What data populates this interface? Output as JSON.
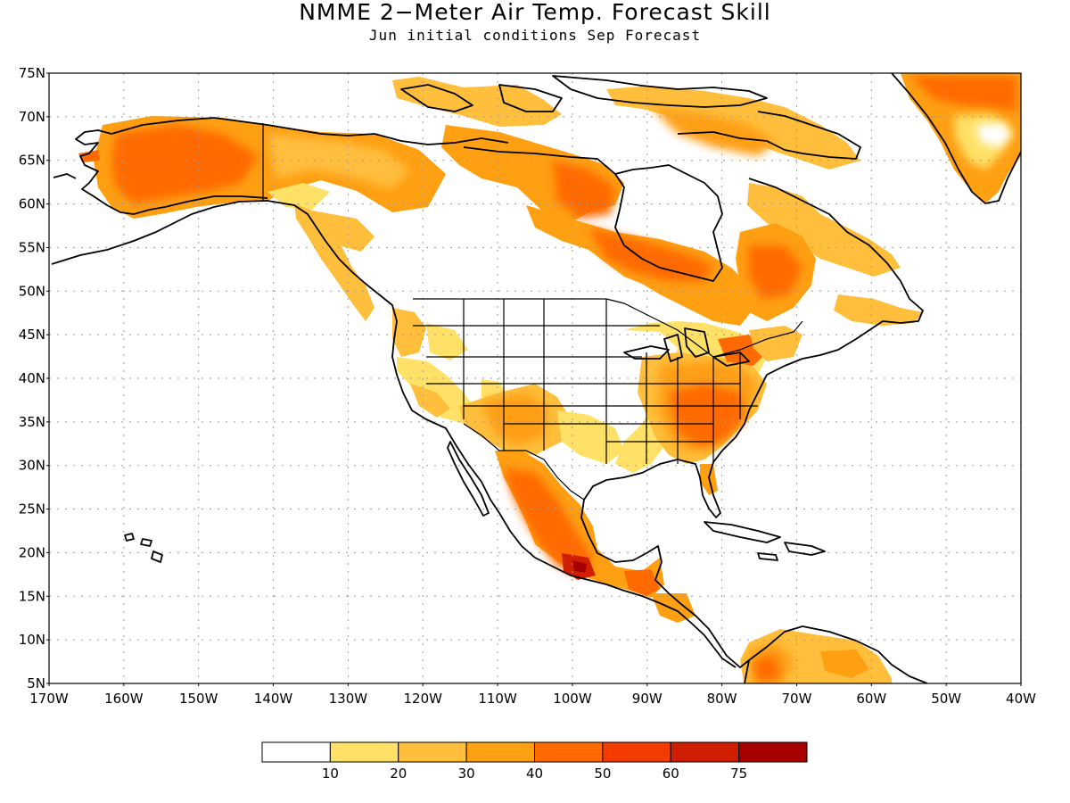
{
  "title": "NMME 2−Meter Air Temp. Forecast Skill",
  "subtitle": "Jun initial conditions  Sep Forecast",
  "map": {
    "lat_range": [
      5,
      75
    ],
    "lon_range": [
      -170,
      -40
    ],
    "grid": true,
    "lat_ticks": [
      "5N",
      "10N",
      "15N",
      "20N",
      "25N",
      "30N",
      "35N",
      "40N",
      "45N",
      "50N",
      "55N",
      "60N",
      "65N",
      "70N",
      "75N"
    ],
    "lon_ticks": [
      "170W",
      "160W",
      "150W",
      "140W",
      "130W",
      "120W",
      "110W",
      "100W",
      "90W",
      "80W",
      "70W",
      "60W",
      "50W",
      "40W"
    ]
  },
  "colorbar": {
    "colors": [
      "#ffffff",
      "#ffe167",
      "#ffbe3c",
      "#ff9f12",
      "#ff6a00",
      "#f23c00",
      "#d01f00",
      "#a60000"
    ],
    "labels": [
      "10",
      "20",
      "30",
      "40",
      "50",
      "60",
      "75"
    ]
  }
}
